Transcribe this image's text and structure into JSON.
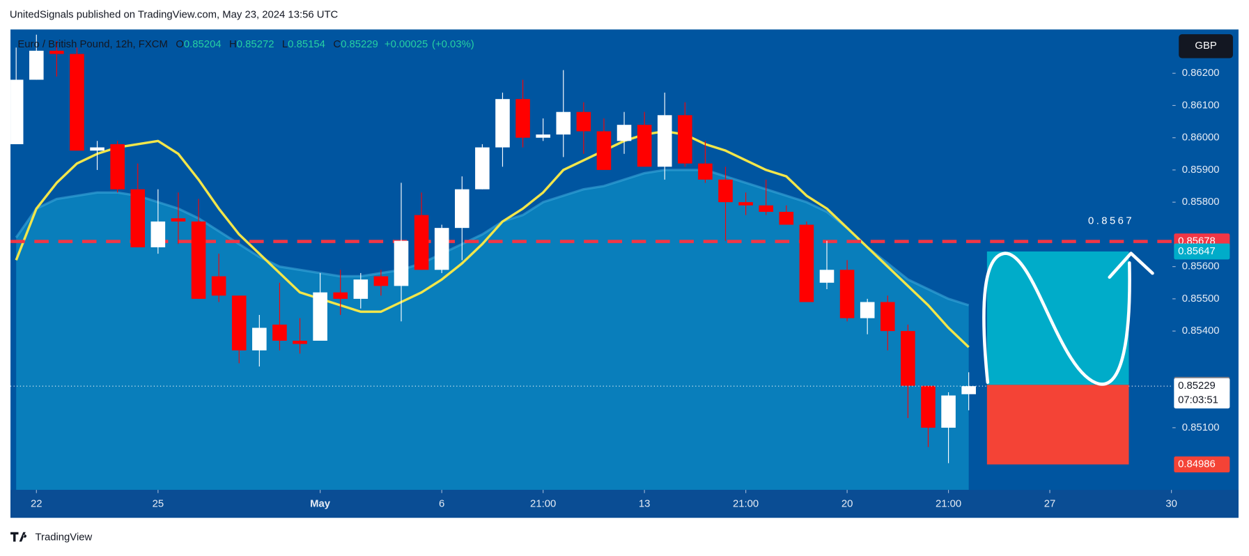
{
  "header": {
    "attribution": "UnitedSignals published on TradingView.com, May 23, 2024 13:56 UTC",
    "brand": "TradingView"
  },
  "chart_data": {
    "type": "candlestick",
    "title": "Euro / British Pound, 12h, FXCM",
    "ohlc_letters": [
      "O",
      "H",
      "L",
      "C"
    ],
    "change": "+0.00025",
    "change_pct": "(+0.03%)",
    "currency": "GBP",
    "annotation": "0.8567",
    "countdown": "07:03:51",
    "up_color": "#ffffff",
    "down_color": "#ff0000",
    "open": [
      0.8598,
      0.8618,
      0.8627,
      0.8626,
      0.8596,
      0.8598,
      0.8584,
      0.8566,
      0.8575,
      0.8574,
      0.8557,
      0.8551,
      0.8534,
      0.8542,
      0.8537,
      0.8537,
      0.8552,
      0.855,
      0.8557,
      0.8554,
      0.8576,
      0.8559,
      0.8572,
      0.8584,
      0.8597,
      0.8612,
      0.86,
      0.8601,
      0.8608,
      0.8602,
      0.8599,
      0.8604,
      0.8591,
      0.8607,
      0.8592,
      0.8587,
      0.858,
      0.8579,
      0.8577,
      0.8573,
      0.8555,
      0.8559,
      0.8544,
      0.8549,
      0.854,
      0.8523,
      0.851,
      0.85204
    ],
    "high": [
      0.8628,
      0.8632,
      0.863,
      0.8628,
      0.8599,
      0.8599,
      0.8592,
      0.8584,
      0.8583,
      0.8581,
      0.8564,
      0.8551,
      0.8545,
      0.8555,
      0.8544,
      0.8558,
      0.8559,
      0.8558,
      0.8559,
      0.8586,
      0.8583,
      0.8573,
      0.8588,
      0.8598,
      0.8614,
      0.8618,
      0.8606,
      0.8621,
      0.8611,
      0.8606,
      0.8608,
      0.8608,
      0.8614,
      0.8611,
      0.8599,
      0.8591,
      0.8583,
      0.8587,
      0.8579,
      0.8574,
      0.8568,
      0.8562,
      0.855,
      0.8551,
      0.8542,
      0.8523,
      0.8521,
      0.85272
    ],
    "low": [
      0.8598,
      0.8618,
      0.8619,
      0.8596,
      0.859,
      0.8583,
      0.8566,
      0.8564,
      0.8567,
      0.855,
      0.8549,
      0.853,
      0.8529,
      0.8534,
      0.8533,
      0.8537,
      0.8545,
      0.8547,
      0.8551,
      0.8543,
      0.8559,
      0.8558,
      0.8562,
      0.8584,
      0.8591,
      0.8597,
      0.8599,
      0.8594,
      0.8595,
      0.859,
      0.8595,
      0.8591,
      0.8587,
      0.8591,
      0.8586,
      0.8568,
      0.8576,
      0.8576,
      0.8573,
      0.8549,
      0.8553,
      0.8543,
      0.8539,
      0.8534,
      0.8513,
      0.8504,
      0.8499,
      0.85154
    ],
    "close": [
      0.8618,
      0.8627,
      0.8626,
      0.8596,
      0.8597,
      0.8584,
      0.8566,
      0.8574,
      0.8574,
      0.855,
      0.8551,
      0.8534,
      0.8541,
      0.8537,
      0.8536,
      0.8552,
      0.855,
      0.8556,
      0.8554,
      0.8568,
      0.8559,
      0.8572,
      0.8584,
      0.8597,
      0.8612,
      0.86,
      0.8601,
      0.8608,
      0.8602,
      0.859,
      0.8604,
      0.8591,
      0.8607,
      0.8592,
      0.8587,
      0.858,
      0.8579,
      0.8577,
      0.8573,
      0.8549,
      0.8559,
      0.8544,
      0.8549,
      0.854,
      0.8523,
      0.851,
      0.852,
      0.85229
    ],
    "overlays": [
      {
        "color": "#f2e64a",
        "values": [
          0.8562,
          0.8578,
          0.8586,
          0.8592,
          0.8595,
          0.8597,
          0.8598,
          0.8599,
          0.8595,
          0.8587,
          0.8578,
          0.857,
          0.8564,
          0.8558,
          0.8552,
          0.855,
          0.8548,
          0.8546,
          0.8546,
          0.8549,
          0.8552,
          0.8556,
          0.8561,
          0.8567,
          0.8574,
          0.8578,
          0.8583,
          0.859,
          0.8593,
          0.8596,
          0.8599,
          0.8601,
          0.8602,
          0.8601,
          0.8598,
          0.8596,
          0.8593,
          0.859,
          0.8588,
          0.8582,
          0.8578,
          0.8572,
          0.8566,
          0.856,
          0.8554,
          0.8548,
          0.8541,
          0.8535
        ]
      },
      {
        "color": "#3aa6d8",
        "fill": "#0a86c0",
        "values": [
          0.8569,
          0.8578,
          0.8581,
          0.8582,
          0.8583,
          0.8583,
          0.8582,
          0.858,
          0.8578,
          0.8575,
          0.8571,
          0.8567,
          0.8563,
          0.856,
          0.8559,
          0.8558,
          0.8557,
          0.8557,
          0.8558,
          0.8559,
          0.8561,
          0.8564,
          0.8567,
          0.857,
          0.8574,
          0.8576,
          0.858,
          0.8582,
          0.8584,
          0.8585,
          0.8587,
          0.8589,
          0.859,
          0.859,
          0.859,
          0.8588,
          0.8586,
          0.8584,
          0.8582,
          0.858,
          0.8577,
          0.8572,
          0.8566,
          0.8561,
          0.8556,
          0.8553,
          0.855,
          0.8548
        ]
      }
    ],
    "hline": {
      "value": 0.85678,
      "color": "#f23645"
    },
    "position": {
      "target": 0.85647,
      "entry": 0.85233,
      "stop": 0.84986,
      "target_color": "#00acc9",
      "stop_color": "#f44336",
      "entry_color": "#787b86"
    },
    "ylim": [
      0.84907,
      0.86336
    ],
    "yticks": [
      {
        "value": 0.862,
        "label": "0.86200"
      },
      {
        "value": 0.861,
        "label": "0.86100"
      },
      {
        "value": 0.86,
        "label": "0.86000"
      },
      {
        "value": 0.859,
        "label": "0.85900"
      },
      {
        "value": 0.858,
        "label": "0.85800"
      },
      {
        "value": 0.856,
        "label": "0.85600"
      },
      {
        "value": 0.855,
        "label": "0.85500"
      },
      {
        "value": 0.854,
        "label": "0.85400"
      },
      {
        "value": 0.851,
        "label": "0.85100"
      }
    ],
    "xlim": [
      -0.28,
      57.05
    ],
    "xticks": [
      {
        "value": 1,
        "label": "22"
      },
      {
        "value": 7,
        "label": "25"
      },
      {
        "value": 15,
        "label": "May"
      },
      {
        "value": 21,
        "label": "6"
      },
      {
        "value": 26,
        "label": "21:00"
      },
      {
        "value": 31,
        "label": "13"
      },
      {
        "value": 36,
        "label": "21:00"
      },
      {
        "value": 41,
        "label": "20"
      },
      {
        "value": 46,
        "label": "21:00"
      },
      {
        "value": 51,
        "label": "27"
      },
      {
        "value": 57,
        "label": "30"
      }
    ],
    "grid": false
  }
}
